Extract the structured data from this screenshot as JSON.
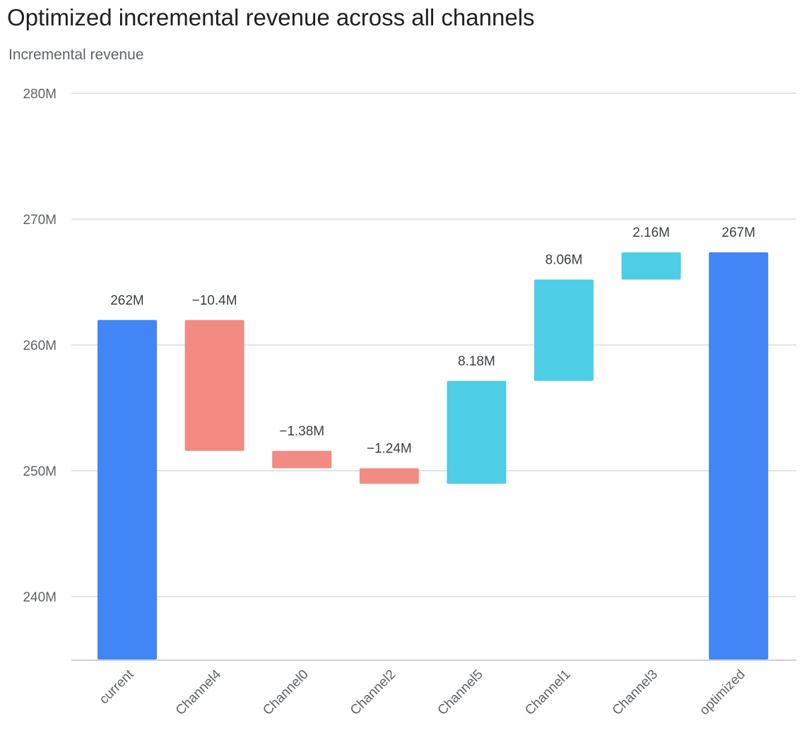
{
  "chart_data": {
    "type": "waterfall",
    "title": "Optimized incremental revenue across all channels",
    "ylabel": "Incremental revenue",
    "ylim": [
      235,
      280
    ],
    "yticks": [
      240,
      250,
      260,
      270,
      280
    ],
    "ytick_labels": [
      "240M",
      "250M",
      "260M",
      "270M",
      "280M"
    ],
    "grid": true,
    "categories": [
      "current",
      "Channel4",
      "Channel0",
      "Channel2",
      "Channel5",
      "Channel1",
      "Channel3",
      "optimized"
    ],
    "kinds": [
      "total",
      "delta",
      "delta",
      "delta",
      "delta",
      "delta",
      "delta",
      "total"
    ],
    "values": [
      261.98,
      -10.4,
      -1.38,
      -1.24,
      8.18,
      8.06,
      2.16,
      267.36
    ],
    "data_labels": [
      "262M",
      "−10.4M",
      "−1.38M",
      "−1.24M",
      "8.18M",
      "8.06M",
      "2.16M",
      "267M"
    ],
    "colors": {
      "total": "#4285F4",
      "decrease": "#F28B82",
      "increase": "#4ECDE6"
    }
  }
}
